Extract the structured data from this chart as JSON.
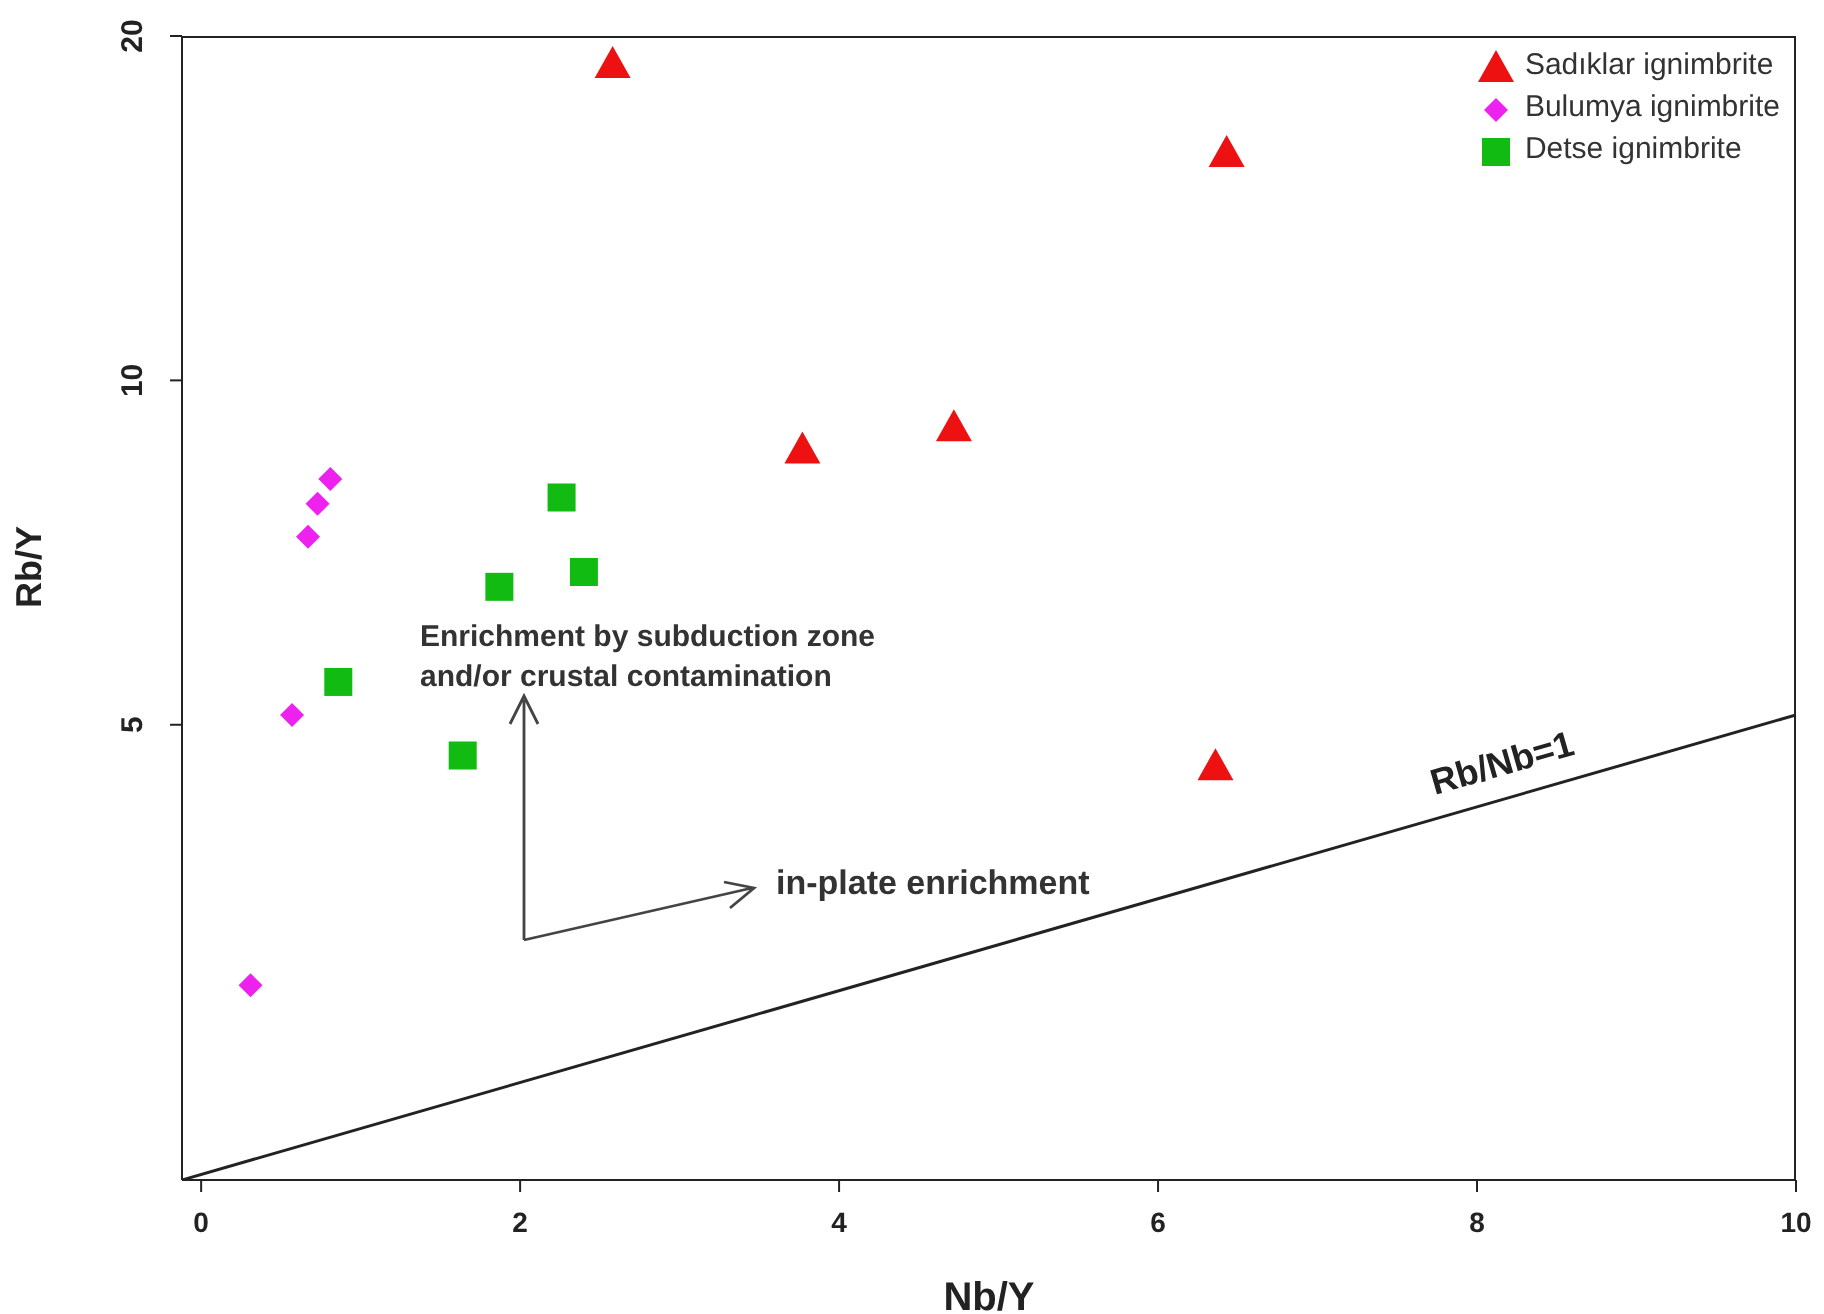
{
  "chart_data": {
    "type": "scatter",
    "xlabel": "Nb/Y",
    "ylabel": "Rb/Y",
    "log": "y",
    "xlim": [
      -0.12,
      10
    ],
    "xticks": [
      0,
      2,
      4,
      6,
      8,
      10
    ],
    "ylim": [
      2,
      20
    ],
    "yticks": [
      5,
      10,
      20
    ],
    "legend": "top right",
    "series": [
      {
        "name": "Sadıklar ignimbrite",
        "color": "#ee1111",
        "marker": "triangle",
        "x": [
          2.58,
          6.43,
          3.77,
          4.72,
          6.36
        ],
        "values": [
          18.9,
          15.8,
          8.7,
          9.1,
          4.6
        ]
      },
      {
        "name": "Bulumya ignimbrite",
        "color": "#ee22ee",
        "marker": "diamond",
        "x": [
          0.31,
          0.57,
          0.67,
          0.73,
          0.81
        ],
        "values": [
          2.96,
          5.1,
          7.3,
          7.8,
          8.2
        ]
      },
      {
        "name": "Detse ignimbrite",
        "color": "#11bb11",
        "marker": "square",
        "x": [
          0.86,
          1.64,
          1.87,
          2.26,
          2.4
        ],
        "values": [
          5.45,
          4.7,
          6.6,
          7.9,
          6.8
        ]
      },
      {
        "name": "Rb/Nb=1",
        "type": "line",
        "color": "#222222",
        "x": [
          -0.12,
          10
        ],
        "values": [
          2,
          5.1
        ]
      }
    ],
    "annotations": [
      "Enrichment by subduction zone\nand/or crustal contamination",
      "in-plate enrichment"
    ]
  }
}
